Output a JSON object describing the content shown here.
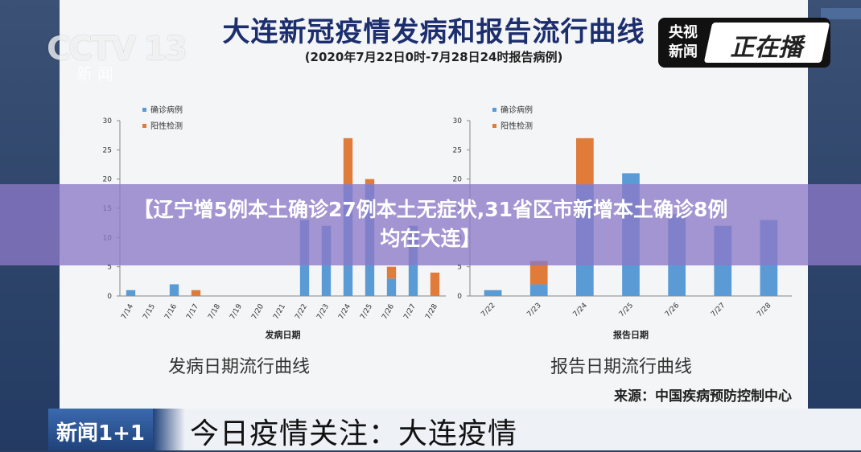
{
  "title": "大连新冠疫情发病和报告流行曲线",
  "subtitle": "(2020年7月22日0时-7月28日24时报告病例)",
  "watermark": {
    "logo": "CCTV 13",
    "sub": "新闻"
  },
  "live_badge": {
    "left": "央视\n新闻",
    "right": "正在播"
  },
  "banner": "【辽宁增5例本土确诊27例本土无症状,31省区市新增本土确诊8例均在大连】",
  "source": "来源：中国疾病预防控制中心",
  "news_logo": "新闻1+1",
  "news_text": "今日疫情关注：大连疫情",
  "colors": {
    "confirmed": "#5b9bd5",
    "positive": "#e07b39"
  },
  "chart_data": [
    {
      "type": "bar",
      "stacked": true,
      "caption": "发病日期流行曲线",
      "xlabel": "发病日期",
      "ylim": [
        0,
        30
      ],
      "yticks": [
        0,
        5,
        10,
        15,
        20,
        25,
        30
      ],
      "categories": [
        "7/14",
        "7/15",
        "7/16",
        "7/17",
        "7/18",
        "7/19",
        "7/20",
        "7/21",
        "7/22",
        "7/23",
        "7/24",
        "7/25",
        "7/26",
        "7/27",
        "7/28"
      ],
      "series": [
        {
          "name": "确诊病例",
          "values": [
            1,
            0,
            2,
            0,
            0,
            0,
            0,
            0,
            13,
            12,
            19,
            19,
            3,
            12,
            0
          ]
        },
        {
          "name": "阳性检测",
          "values": [
            0,
            0,
            0,
            1,
            0,
            0,
            0,
            0,
            0,
            0,
            8,
            1,
            2,
            0,
            4
          ]
        }
      ],
      "legend_position": "top-left"
    },
    {
      "type": "bar",
      "stacked": true,
      "caption": "报告日期流行曲线",
      "xlabel": "报告日期",
      "ylim": [
        0,
        30
      ],
      "yticks": [
        0,
        5,
        10,
        15,
        20,
        25,
        30
      ],
      "categories": [
        "7/22",
        "7/23",
        "7/24",
        "7/25",
        "7/26",
        "7/27",
        "7/28"
      ],
      "series": [
        {
          "name": "确诊病例",
          "values": [
            1,
            2,
            19,
            21,
            14,
            12,
            13
          ]
        },
        {
          "name": "阳性检测",
          "values": [
            0,
            4,
            8,
            0,
            0,
            0,
            0
          ]
        }
      ],
      "legend_position": "top-left"
    }
  ]
}
